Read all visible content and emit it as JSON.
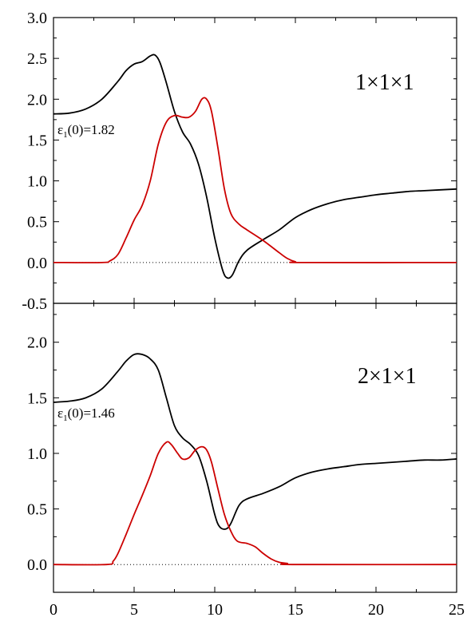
{
  "chart_data": [
    {
      "type": "line",
      "panel_label": "1×1×1",
      "annotation": {
        "symbol": "ε",
        "subscript": "1",
        "text": "(0)=1.82"
      },
      "xlim": [
        0,
        25
      ],
      "ylim": [
        -0.5,
        3.0
      ],
      "y_ticks": [
        "-0.5",
        "0.0",
        "0.5",
        "1.0",
        "1.5",
        "2.0",
        "2.5",
        "3.0"
      ],
      "y_tick_values": [
        -0.5,
        0.0,
        0.5,
        1.0,
        1.5,
        2.0,
        2.5,
        3.0
      ],
      "series": [
        {
          "color": "#000000",
          "points": [
            [
              0,
              1.82
            ],
            [
              1,
              1.83
            ],
            [
              2,
              1.88
            ],
            [
              3,
              2.0
            ],
            [
              4,
              2.22
            ],
            [
              4.5,
              2.35
            ],
            [
              5,
              2.43
            ],
            [
              5.5,
              2.46
            ],
            [
              6,
              2.53
            ],
            [
              6.3,
              2.54
            ],
            [
              6.6,
              2.45
            ],
            [
              7,
              2.2
            ],
            [
              7.5,
              1.85
            ],
            [
              8,
              1.6
            ],
            [
              8.5,
              1.45
            ],
            [
              9,
              1.2
            ],
            [
              9.5,
              0.8
            ],
            [
              10,
              0.3
            ],
            [
              10.5,
              -0.1
            ],
            [
              10.8,
              -0.19
            ],
            [
              11.1,
              -0.15
            ],
            [
              11.5,
              0.02
            ],
            [
              12,
              0.15
            ],
            [
              13,
              0.28
            ],
            [
              14,
              0.4
            ],
            [
              15,
              0.55
            ],
            [
              16,
              0.65
            ],
            [
              17,
              0.72
            ],
            [
              18,
              0.77
            ],
            [
              19,
              0.8
            ],
            [
              20,
              0.83
            ],
            [
              21,
              0.85
            ],
            [
              22,
              0.87
            ],
            [
              23,
              0.88
            ],
            [
              24,
              0.89
            ],
            [
              25,
              0.9
            ]
          ]
        },
        {
          "color": "#cc0000",
          "points": [
            [
              0,
              0
            ],
            [
              3,
              0
            ],
            [
              3.5,
              0.02
            ],
            [
              4,
              0.1
            ],
            [
              4.5,
              0.3
            ],
            [
              5,
              0.52
            ],
            [
              5.5,
              0.7
            ],
            [
              6,
              1.0
            ],
            [
              6.5,
              1.45
            ],
            [
              7,
              1.72
            ],
            [
              7.5,
              1.8
            ],
            [
              8,
              1.78
            ],
            [
              8.4,
              1.78
            ],
            [
              8.8,
              1.85
            ],
            [
              9.2,
              2.0
            ],
            [
              9.5,
              2.0
            ],
            [
              9.8,
              1.85
            ],
            [
              10.2,
              1.4
            ],
            [
              10.6,
              0.9
            ],
            [
              11,
              0.6
            ],
            [
              11.5,
              0.47
            ],
            [
              12,
              0.4
            ],
            [
              13,
              0.27
            ],
            [
              14,
              0.12
            ],
            [
              14.5,
              0.05
            ],
            [
              15,
              0.01
            ],
            [
              15.5,
              0
            ],
            [
              25,
              0
            ]
          ]
        }
      ]
    },
    {
      "type": "line",
      "panel_label": "2×1×1",
      "annotation": {
        "symbol": "ε",
        "subscript": "1",
        "text": "(0)=1.46"
      },
      "xlim": [
        0,
        25
      ],
      "ylim": [
        -0.25,
        2.35
      ],
      "y_ticks": [
        "0.0",
        "0.5",
        "1.0",
        "1.5",
        "2.0"
      ],
      "y_tick_values": [
        0.0,
        0.5,
        1.0,
        1.5,
        2.0
      ],
      "x_ticks": [
        "0",
        "5",
        "10",
        "15",
        "20",
        "25"
      ],
      "x_tick_values": [
        0,
        5,
        10,
        15,
        20,
        25
      ],
      "series": [
        {
          "color": "#000000",
          "points": [
            [
              0,
              1.46
            ],
            [
              1,
              1.47
            ],
            [
              2,
              1.5
            ],
            [
              3,
              1.58
            ],
            [
              4,
              1.74
            ],
            [
              4.5,
              1.83
            ],
            [
              5,
              1.89
            ],
            [
              5.5,
              1.89
            ],
            [
              6,
              1.85
            ],
            [
              6.5,
              1.75
            ],
            [
              7,
              1.5
            ],
            [
              7.5,
              1.25
            ],
            [
              8,
              1.14
            ],
            [
              8.5,
              1.08
            ],
            [
              9,
              0.98
            ],
            [
              9.5,
              0.75
            ],
            [
              10,
              0.45
            ],
            [
              10.3,
              0.34
            ],
            [
              10.7,
              0.32
            ],
            [
              11,
              0.37
            ],
            [
              11.5,
              0.53
            ],
            [
              12,
              0.59
            ],
            [
              13,
              0.64
            ],
            [
              14,
              0.7
            ],
            [
              15,
              0.78
            ],
            [
              16,
              0.83
            ],
            [
              17,
              0.86
            ],
            [
              18,
              0.88
            ],
            [
              19,
              0.9
            ],
            [
              20,
              0.91
            ],
            [
              21,
              0.92
            ],
            [
              22,
              0.93
            ],
            [
              23,
              0.94
            ],
            [
              24,
              0.94
            ],
            [
              25,
              0.95
            ]
          ]
        },
        {
          "color": "#cc0000",
          "points": [
            [
              0,
              0
            ],
            [
              3.3,
              0
            ],
            [
              3.7,
              0.03
            ],
            [
              4,
              0.1
            ],
            [
              4.5,
              0.27
            ],
            [
              5,
              0.45
            ],
            [
              5.5,
              0.62
            ],
            [
              6,
              0.8
            ],
            [
              6.5,
              1.0
            ],
            [
              7,
              1.1
            ],
            [
              7.3,
              1.08
            ],
            [
              7.7,
              1.0
            ],
            [
              8,
              0.95
            ],
            [
              8.4,
              0.96
            ],
            [
              8.8,
              1.03
            ],
            [
              9.2,
              1.06
            ],
            [
              9.5,
              1.03
            ],
            [
              9.8,
              0.92
            ],
            [
              10.2,
              0.68
            ],
            [
              10.6,
              0.45
            ],
            [
              11,
              0.3
            ],
            [
              11.4,
              0.21
            ],
            [
              12,
              0.19
            ],
            [
              12.5,
              0.16
            ],
            [
              13,
              0.1
            ],
            [
              13.5,
              0.05
            ],
            [
              14,
              0.02
            ],
            [
              14.5,
              0.01
            ],
            [
              15,
              0
            ],
            [
              25,
              0
            ]
          ]
        }
      ]
    }
  ]
}
